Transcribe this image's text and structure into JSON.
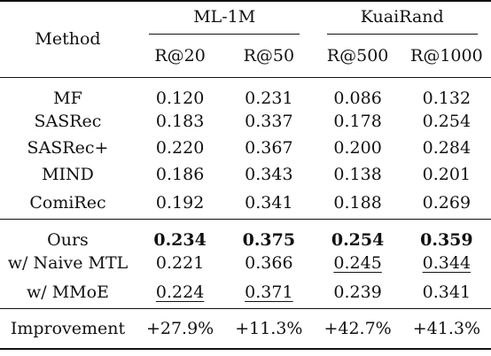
{
  "table": {
    "method_header": "Method",
    "groups": [
      {
        "label": "ML-1M",
        "metrics": [
          "R@20",
          "R@50"
        ]
      },
      {
        "label": "KuaiRand",
        "metrics": [
          "R@500",
          "R@1000"
        ]
      }
    ],
    "baselines": [
      {
        "method": "MF",
        "values": [
          "0.120",
          "0.231",
          "0.086",
          "0.132"
        ]
      },
      {
        "method": "SASRec",
        "values": [
          "0.183",
          "0.337",
          "0.178",
          "0.254"
        ]
      },
      {
        "method": "SASRec+",
        "values": [
          "0.220",
          "0.367",
          "0.200",
          "0.284"
        ]
      },
      {
        "method": "MIND",
        "values": [
          "0.186",
          "0.343",
          "0.138",
          "0.201"
        ]
      },
      {
        "method": "ComiRec",
        "values": [
          "0.192",
          "0.341",
          "0.188",
          "0.269"
        ]
      }
    ],
    "ours": [
      {
        "method": "Ours",
        "values": [
          "0.234",
          "0.375",
          "0.254",
          "0.359"
        ],
        "bold": [
          true,
          true,
          true,
          true
        ],
        "underline": [
          false,
          false,
          false,
          false
        ]
      },
      {
        "method": "w/ Naive MTL",
        "values": [
          "0.221",
          "0.366",
          "0.245",
          "0.344"
        ],
        "bold": [
          false,
          false,
          false,
          false
        ],
        "underline": [
          false,
          false,
          true,
          true
        ]
      },
      {
        "method": "w/ MMoE",
        "values": [
          "0.224",
          "0.371",
          "0.239",
          "0.341"
        ],
        "bold": [
          false,
          false,
          false,
          false
        ],
        "underline": [
          true,
          true,
          false,
          false
        ]
      }
    ],
    "improvement": {
      "label": "Improvement",
      "values": [
        "+27.9%",
        "+11.3%",
        "+42.7%",
        "+41.3%"
      ]
    }
  }
}
